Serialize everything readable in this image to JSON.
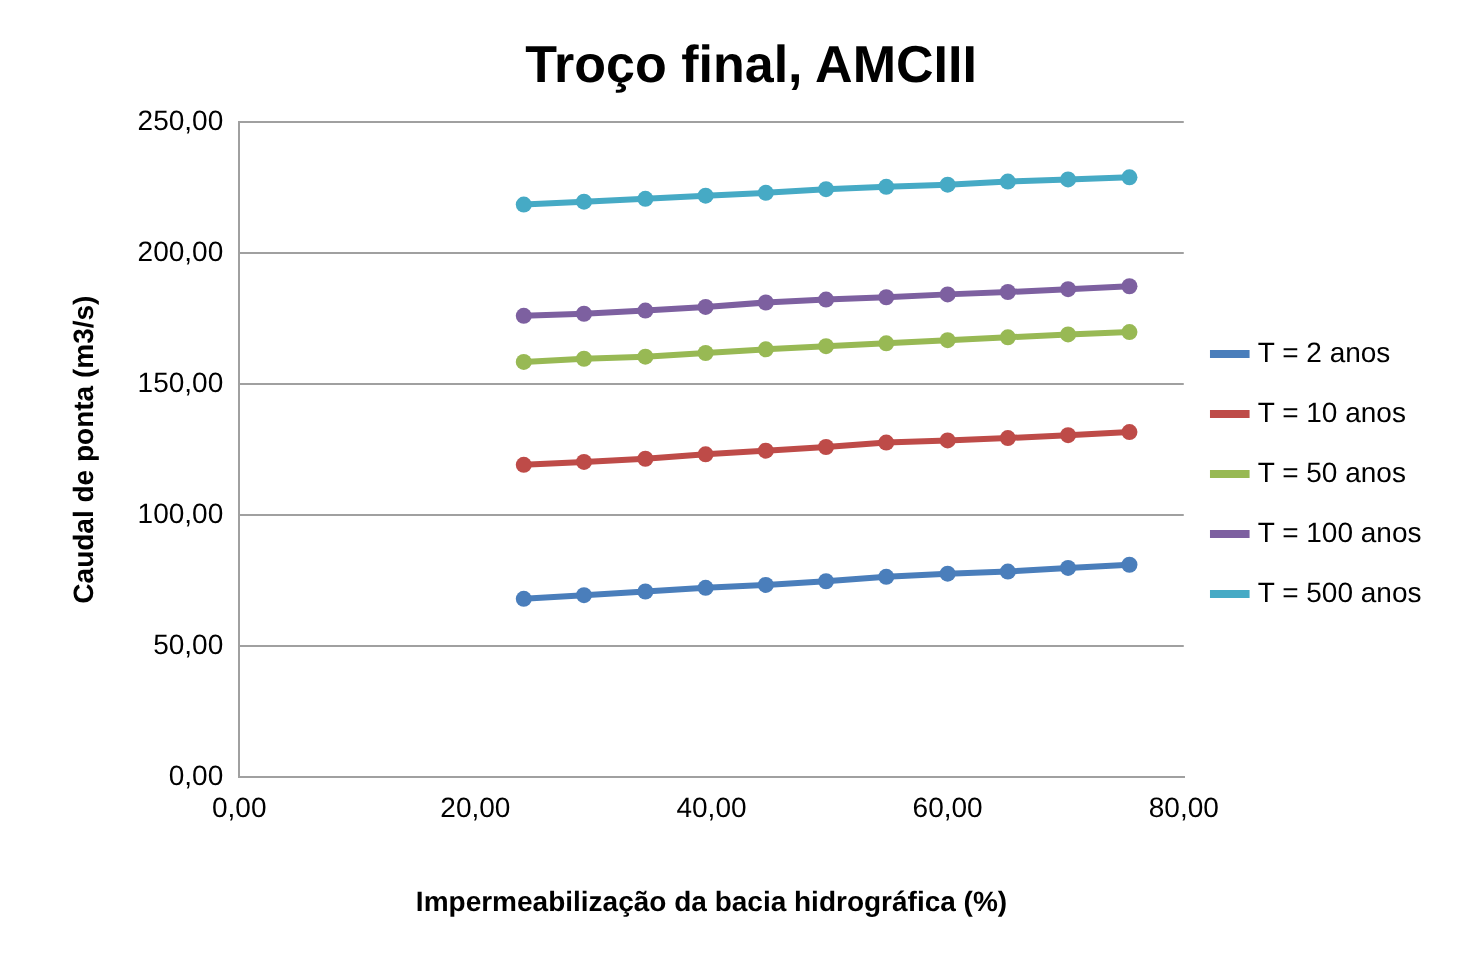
{
  "chart_data": {
    "type": "line",
    "title": "Troço final, AMCIII",
    "xlabel": "Impermeabilização da bacia hidrográfica (%)",
    "ylabel": "Caudal de ponta (m3/s)",
    "x": [
      24.1,
      29.2,
      34.4,
      39.5,
      44.6,
      49.7,
      54.8,
      60.0,
      65.1,
      70.2,
      75.4
    ],
    "series": [
      {
        "name": "T = 2 anos",
        "color": "#4a7ebb",
        "values": [
          68.0,
          69.4,
          70.8,
          72.2,
          73.3,
          74.7,
          76.4,
          77.6,
          78.4,
          79.8,
          81.0
        ]
      },
      {
        "name": "T = 10 anos",
        "color": "#be4b48",
        "values": [
          119.2,
          120.3,
          121.5,
          123.2,
          124.6,
          126.0,
          127.7,
          128.5,
          129.4,
          130.5,
          131.7
        ]
      },
      {
        "name": "T = 50 anos",
        "color": "#98b954",
        "values": [
          158.5,
          159.7,
          160.5,
          161.9,
          163.3,
          164.5,
          165.6,
          166.8,
          167.9,
          169.0,
          169.9
        ]
      },
      {
        "name": "T = 100 anos",
        "color": "#7d60a0",
        "values": [
          176.1,
          176.9,
          178.1,
          179.5,
          181.2,
          182.3,
          183.2,
          184.3,
          185.2,
          186.3,
          187.4
        ]
      },
      {
        "name": "T = 500 anos",
        "color": "#46aac5",
        "values": [
          218.6,
          219.7,
          220.8,
          222.0,
          223.1,
          224.5,
          225.4,
          226.2,
          227.4,
          228.2,
          229.0
        ]
      }
    ],
    "xlim": [
      0,
      80
    ],
    "xticks": [
      {
        "value": 0,
        "label": "0,00"
      },
      {
        "value": 20,
        "label": "20,00"
      },
      {
        "value": 40,
        "label": "40,00"
      },
      {
        "value": 60,
        "label": "60,00"
      },
      {
        "value": 80,
        "label": "80,00"
      }
    ],
    "ylim": [
      0,
      250
    ],
    "yticks": [
      {
        "value": 0,
        "label": "0,00"
      },
      {
        "value": 50,
        "label": "50,00"
      },
      {
        "value": 100,
        "label": "100,00"
      },
      {
        "value": 150,
        "label": "150,00"
      },
      {
        "value": 200,
        "label": "200,00"
      },
      {
        "value": 250,
        "label": "250,00"
      }
    ],
    "grid": "y",
    "legend": "right",
    "marker": "circle",
    "line_style": "solid"
  }
}
